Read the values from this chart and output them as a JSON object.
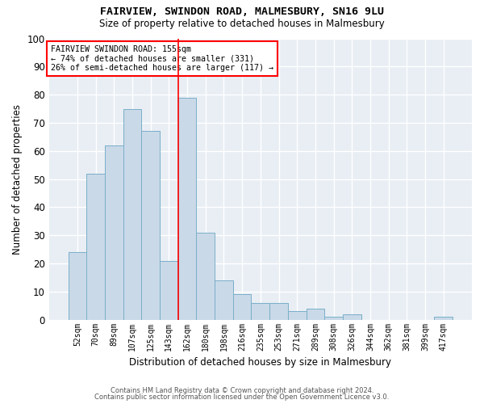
{
  "title1": "FAIRVIEW, SWINDON ROAD, MALMESBURY, SN16 9LU",
  "title2": "Size of property relative to detached houses in Malmesbury",
  "xlabel": "Distribution of detached houses by size in Malmesbury",
  "ylabel": "Number of detached properties",
  "bar_labels": [
    "52sqm",
    "70sqm",
    "89sqm",
    "107sqm",
    "125sqm",
    "143sqm",
    "162sqm",
    "180sqm",
    "198sqm",
    "216sqm",
    "235sqm",
    "253sqm",
    "271sqm",
    "289sqm",
    "308sqm",
    "326sqm",
    "344sqm",
    "362sqm",
    "381sqm",
    "399sqm",
    "417sqm"
  ],
  "bar_values": [
    24,
    52,
    62,
    75,
    67,
    21,
    79,
    31,
    14,
    9,
    6,
    6,
    3,
    4,
    1,
    2,
    0,
    0,
    0,
    0,
    1
  ],
  "bar_color": "#c9d9e8",
  "bar_edgecolor": "#7aafc8",
  "background_color": "#e8eef4",
  "grid_color": "#ffffff",
  "vline_x": 6.0,
  "vline_color": "red",
  "annotation_title": "FAIRVIEW SWINDON ROAD: 155sqm",
  "annotation_line1": "← 74% of detached houses are smaller (331)",
  "annotation_line2": "26% of semi-detached houses are larger (117) →",
  "annotation_box_color": "white",
  "annotation_box_edgecolor": "red",
  "ylim": [
    0,
    100
  ],
  "yticks": [
    0,
    10,
    20,
    30,
    40,
    50,
    60,
    70,
    80,
    90,
    100
  ],
  "footer1": "Contains HM Land Registry data © Crown copyright and database right 2024.",
  "footer2": "Contains public sector information licensed under the Open Government Licence v3.0.",
  "fig_bg": "#ffffff"
}
